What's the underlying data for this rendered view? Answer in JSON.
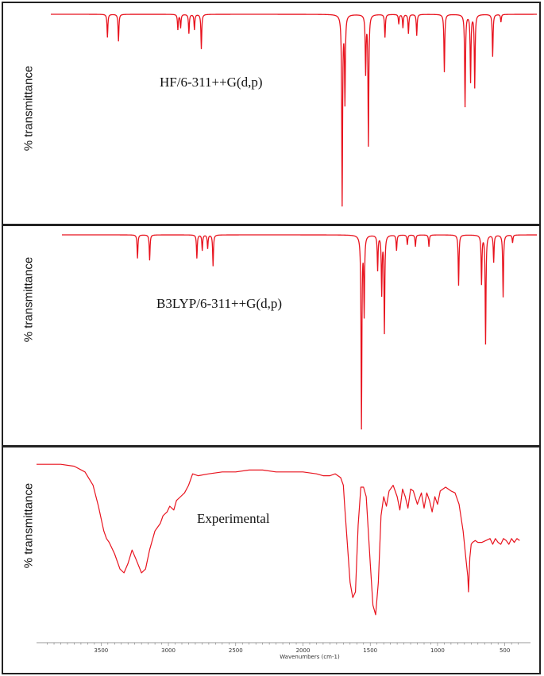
{
  "chart_data": [
    {
      "type": "line",
      "title": "HF/6-311++G(d,p)",
      "ylabel": "% transmittance",
      "xlim": [
        3900,
        380
      ],
      "ylim": [
        0,
        100
      ],
      "color": "#e8131e",
      "baseline": 100,
      "peaks": [
        {
          "x": 3490,
          "depth": 12
        },
        {
          "x": 3410,
          "depth": 14
        },
        {
          "x": 2980,
          "depth": 8
        },
        {
          "x": 2960,
          "depth": 7
        },
        {
          "x": 2900,
          "depth": 10
        },
        {
          "x": 2860,
          "depth": 8
        },
        {
          "x": 2810,
          "depth": 18
        },
        {
          "x": 1790,
          "depth": 100
        },
        {
          "x": 1770,
          "depth": 45
        },
        {
          "x": 1620,
          "depth": 30
        },
        {
          "x": 1600,
          "depth": 68
        },
        {
          "x": 1480,
          "depth": 12
        },
        {
          "x": 1380,
          "depth": 5
        },
        {
          "x": 1350,
          "depth": 7
        },
        {
          "x": 1310,
          "depth": 10
        },
        {
          "x": 1250,
          "depth": 11
        },
        {
          "x": 1050,
          "depth": 30
        },
        {
          "x": 900,
          "depth": 48
        },
        {
          "x": 860,
          "depth": 35
        },
        {
          "x": 830,
          "depth": 38
        },
        {
          "x": 700,
          "depth": 22
        },
        {
          "x": 640,
          "depth": 4
        }
      ]
    },
    {
      "type": "line",
      "title": "B3LYP/6-311++G(d,p)",
      "ylabel": "% transmittance",
      "xlim": [
        3900,
        380
      ],
      "ylim": [
        0,
        100
      ],
      "color": "#e8131e",
      "baseline": 100,
      "peaks": [
        {
          "x": 3340,
          "depth": 12
        },
        {
          "x": 3250,
          "depth": 13
        },
        {
          "x": 2900,
          "depth": 12
        },
        {
          "x": 2860,
          "depth": 8
        },
        {
          "x": 2820,
          "depth": 7
        },
        {
          "x": 2780,
          "depth": 16
        },
        {
          "x": 1680,
          "depth": 100
        },
        {
          "x": 1660,
          "depth": 40
        },
        {
          "x": 1560,
          "depth": 18
        },
        {
          "x": 1530,
          "depth": 30
        },
        {
          "x": 1510,
          "depth": 50
        },
        {
          "x": 1420,
          "depth": 8
        },
        {
          "x": 1340,
          "depth": 5
        },
        {
          "x": 1280,
          "depth": 6
        },
        {
          "x": 1180,
          "depth": 6
        },
        {
          "x": 960,
          "depth": 26
        },
        {
          "x": 790,
          "depth": 25
        },
        {
          "x": 760,
          "depth": 56
        },
        {
          "x": 700,
          "depth": 14
        },
        {
          "x": 630,
          "depth": 32
        },
        {
          "x": 560,
          "depth": 4
        }
      ]
    },
    {
      "type": "line",
      "title": "Experimental",
      "ylabel": "% transmittance",
      "xlabel": "Wavenumbers (cm-1)",
      "xlim": [
        3900,
        380
      ],
      "ylim": [
        0,
        100
      ],
      "color": "#e8131e",
      "xticks": [
        3500,
        3000,
        2500,
        2000,
        1500,
        1000,
        500
      ],
      "x": [
        3980,
        3800,
        3700,
        3620,
        3560,
        3520,
        3480,
        3460,
        3440,
        3400,
        3360,
        3330,
        3300,
        3270,
        3240,
        3200,
        3170,
        3140,
        3100,
        3060,
        3040,
        3010,
        2990,
        2960,
        2940,
        2910,
        2880,
        2850,
        2820,
        2780,
        2700,
        2600,
        2500,
        2400,
        2300,
        2200,
        2100,
        2000,
        1900,
        1850,
        1800,
        1760,
        1720,
        1700,
        1690,
        1670,
        1650,
        1630,
        1610,
        1590,
        1570,
        1550,
        1530,
        1500,
        1480,
        1460,
        1440,
        1420,
        1400,
        1380,
        1360,
        1330,
        1300,
        1280,
        1260,
        1240,
        1220,
        1200,
        1180,
        1150,
        1120,
        1100,
        1080,
        1060,
        1040,
        1020,
        1000,
        980,
        960,
        940,
        920,
        900,
        870,
        840,
        810,
        790,
        775,
        770,
        760,
        750,
        740,
        720,
        700,
        670,
        640,
        610,
        590,
        570,
        550,
        530,
        510,
        490,
        470,
        450,
        430,
        410,
        390
      ],
      "y": [
        97,
        97,
        96,
        93,
        86,
        75,
        62,
        58,
        56,
        50,
        42,
        40,
        45,
        52,
        47,
        40,
        42,
        52,
        62,
        66,
        70,
        72,
        75,
        73,
        78,
        80,
        82,
        86,
        92,
        91,
        92,
        93,
        93,
        94,
        94,
        93,
        93,
        93,
        92,
        91,
        91,
        92,
        90,
        86,
        75,
        55,
        35,
        27,
        30,
        65,
        85,
        85,
        80,
        45,
        23,
        18,
        35,
        70,
        80,
        75,
        83,
        86,
        80,
        73,
        84,
        80,
        74,
        84,
        83,
        76,
        82,
        74,
        82,
        78,
        72,
        80,
        76,
        83,
        84,
        85,
        84,
        83,
        82,
        76,
        62,
        48,
        38,
        30,
        48,
        55,
        56,
        57,
        56,
        56,
        57,
        58,
        55,
        58,
        56,
        55,
        58,
        57,
        55,
        58,
        56,
        58,
        57
      ]
    }
  ]
}
